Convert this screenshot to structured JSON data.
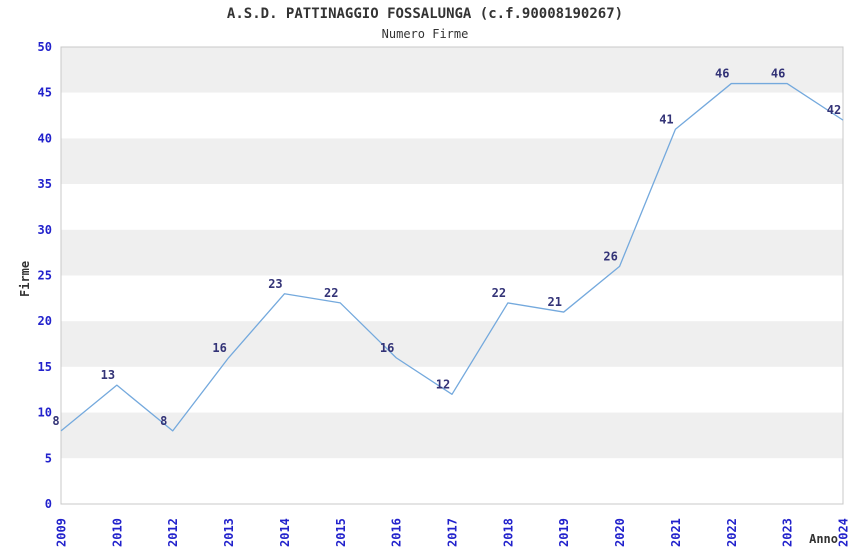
{
  "header": {
    "title": "A.S.D. PATTINAGGIO FOSSALUNGA (c.f.90008190267)",
    "subtitle": "Numero Firme"
  },
  "colors": {
    "line": "#74a9dd",
    "axis_tick_label": "#2222cc",
    "point_label": "#333377",
    "title_text": "#333333",
    "axis_title_text": "#333333",
    "band_gray": "#efefef",
    "band_white": "#ffffff",
    "plot_border": "#c8c8c8",
    "background": "#ffffff"
  },
  "chart_data": {
    "type": "line",
    "title": "A.S.D. PATTINAGGIO FOSSALUNGA (c.f.90008190267)",
    "subtitle": "Numero Firme",
    "xlabel": "Anno",
    "ylabel": "Firme",
    "categories": [
      "2009",
      "2010",
      "2012",
      "2013",
      "2014",
      "2015",
      "2016",
      "2017",
      "2018",
      "2019",
      "2020",
      "2021",
      "2022",
      "2023",
      "2024"
    ],
    "values": [
      8,
      13,
      8,
      16,
      23,
      22,
      16,
      12,
      22,
      21,
      26,
      41,
      46,
      46,
      42
    ],
    "ylim": [
      0,
      50
    ],
    "ytick_step": 5,
    "yticks": [
      0,
      5,
      10,
      15,
      20,
      25,
      30,
      35,
      40,
      45,
      50
    ],
    "grid": "alternating-horizontal-bands",
    "legend_position": "none",
    "point_labels_visible": true,
    "x_tick_rotation_degrees": 90
  }
}
